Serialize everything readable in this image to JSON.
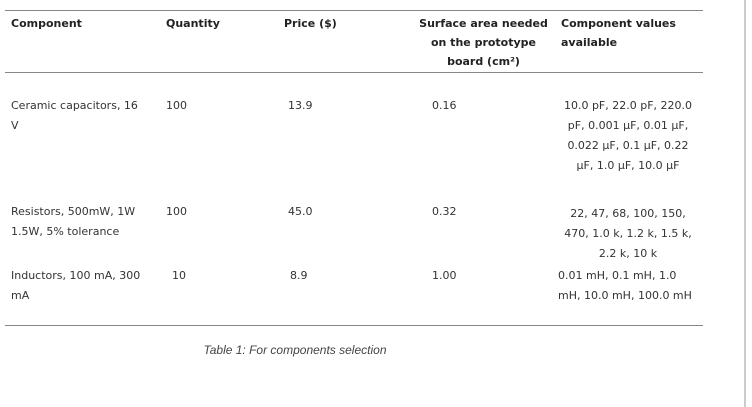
{
  "table": {
    "header": [
      "Component",
      "Quantity",
      "Price ($)",
      "Surface area needed on the prototype board (cm²)",
      "Component values available"
    ],
    "rows": [
      [
        "Ceramic capacitors, 16 V",
        "100",
        "13.9",
        "0.16",
        "10.0 pF, 22.0 pF, 220.0 pF, 0.001 μF, 0.01 μF, 0.022 μF, 0.1 μF, 0.22 μF, 1.0 μF, 10.0 μF"
      ],
      [
        "Resistors, 500mW, 1W 1.5W, 5% tolerance",
        "100",
        "45.0",
        "0.32",
        "22, 47, 68, 100, 150, 470, 1.0 k, 1.2 k, 1.5 k, 2.2 k, 10 k"
      ],
      [
        "Inductors, 100 mA, 300 mA",
        "10",
        "8.9",
        "1.00",
        "0.01 mH, 0.1 mH, 1.0 mH, 10.0 mH, 100.0 mH"
      ]
    ],
    "caption": "Table 1: For components selection"
  }
}
